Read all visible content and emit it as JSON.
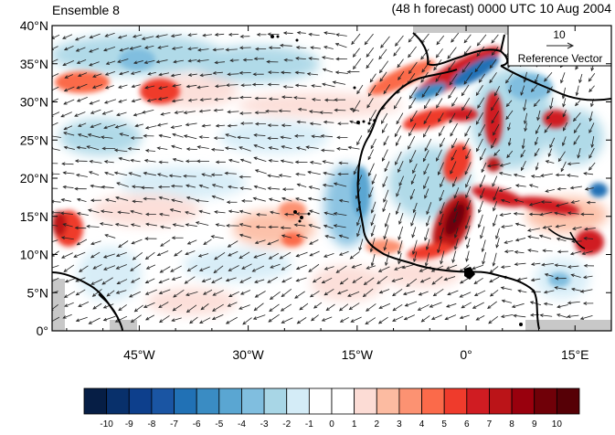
{
  "title_left": "Ensemble 8",
  "title_right": "(48 h forecast) 0000 UTC 10 Aug 2004",
  "reference_vector": {
    "magnitude_label": "10",
    "label": "Reference Vector"
  },
  "lat_labels": [
    "40°N",
    "35°N",
    "30°N",
    "25°N",
    "20°N",
    "15°N",
    "10°N",
    "5°N",
    "0°"
  ],
  "lon_labels": [
    "45°W",
    "30°W",
    "15°W",
    "0°",
    "15°E"
  ],
  "map_extent": {
    "lon_min": -57,
    "lon_max": 20,
    "lat_min": 0,
    "lat_max": 40
  },
  "colorbar": {
    "labels": [
      "-10",
      "-9",
      "-8",
      "-7",
      "-6",
      "-5",
      "-4",
      "-3",
      "-2",
      "-1",
      "0",
      "1",
      "2",
      "3",
      "4",
      "5",
      "6",
      "7",
      "8",
      "9",
      "10"
    ],
    "colors": [
      "#061e45",
      "#08306b",
      "#0d3f8c",
      "#1a55a3",
      "#2171b5",
      "#3a8cc3",
      "#5aa6d2",
      "#80bedf",
      "#a8d6e6",
      "#d4ecf7",
      "#ffffff",
      "#ffffff",
      "#fcdcd5",
      "#fcbba1",
      "#fc9272",
      "#fb6a4a",
      "#ef3b2c",
      "#d01c22",
      "#bb1418",
      "#99000d",
      "#700008",
      "#560006"
    ]
  },
  "colors": {
    "land_outline": "#000000",
    "missing_data": "#c8c8c8",
    "vector": "#222222"
  }
}
